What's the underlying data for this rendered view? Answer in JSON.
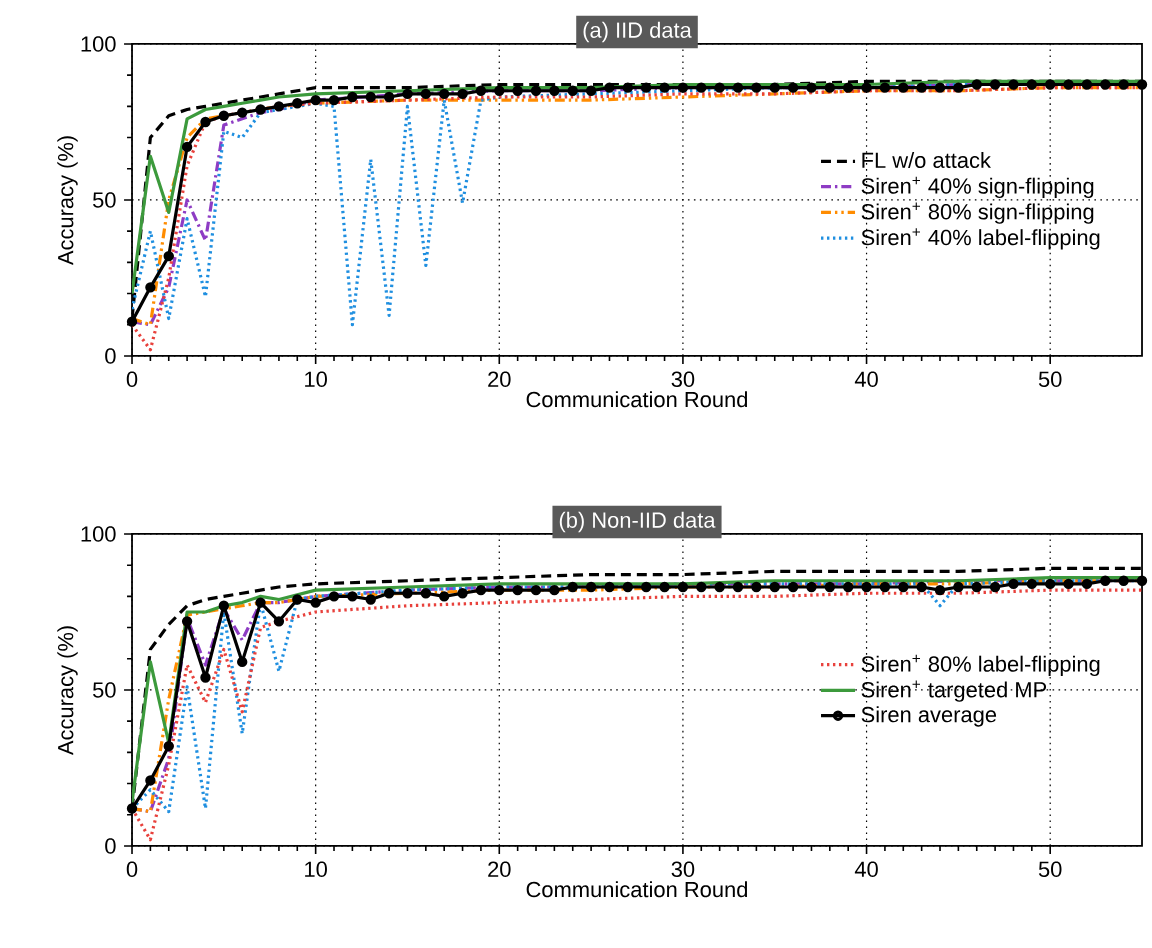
{
  "chart_data": [
    {
      "type": "line",
      "title": "(a) IID data",
      "xlabel": "Communication Round",
      "ylabel": "Accuracy (%)",
      "xlim": [
        0,
        55
      ],
      "ylim": [
        0,
        100
      ],
      "xticks": [
        0,
        10,
        20,
        30,
        40,
        50
      ],
      "yticks": [
        0,
        50,
        100
      ],
      "grid": true,
      "legend": "right",
      "series": [
        {
          "name": "FL w/o attack",
          "color": "#000000",
          "line_style": "dashed",
          "x": [
            0,
            1,
            2,
            3,
            4,
            5,
            6,
            7,
            8,
            10,
            15,
            20,
            25,
            30,
            35,
            40,
            45,
            50,
            55
          ],
          "values": [
            12,
            70,
            77,
            79,
            80,
            81,
            82,
            83,
            84,
            86,
            86,
            87,
            87,
            87,
            87,
            88,
            88,
            88,
            88
          ]
        },
        {
          "name": "Siren$^{+}$ 40% sign-flipping",
          "color": "#8e3cc4",
          "line_style": "dashdot",
          "x": [
            0,
            1,
            2,
            3,
            4,
            5,
            6,
            7,
            8,
            10,
            15,
            20,
            25,
            30,
            35,
            40,
            45,
            50,
            55
          ],
          "values": [
            11,
            10,
            22,
            50,
            37,
            74,
            76,
            78,
            79,
            82,
            84,
            85,
            85,
            86,
            86,
            86,
            87,
            87,
            87
          ]
        },
        {
          "name": "Siren$^{+}$ 80% sign-flipping",
          "color": "#ff8c00",
          "line_style": "dashdotdot",
          "x": [
            0,
            1,
            2,
            3,
            4,
            5,
            6,
            7,
            8,
            10,
            15,
            20,
            25,
            30,
            35,
            40,
            45,
            50,
            55
          ],
          "values": [
            12,
            10,
            50,
            70,
            76,
            77,
            78,
            79,
            80,
            81,
            82,
            82,
            82,
            83,
            84,
            85,
            85,
            86,
            86
          ]
        },
        {
          "name": "Siren$^{+}$ 40% label-flipping",
          "color": "#1f8fe0",
          "line_style": "dotted",
          "x": [
            0,
            1,
            2,
            3,
            4,
            5,
            6,
            7,
            8,
            9,
            10,
            11,
            12,
            13,
            14,
            15,
            16,
            17,
            18,
            19,
            20,
            25,
            30,
            35,
            40,
            45,
            50,
            55
          ],
          "values": [
            15,
            40,
            12,
            44,
            19,
            72,
            70,
            78,
            79,
            80,
            81,
            80,
            10,
            63,
            13,
            80,
            29,
            82,
            49,
            82,
            83,
            84,
            85,
            86,
            86,
            87,
            87,
            87
          ]
        },
        {
          "color": "#e8413c",
          "line_style": "dotted",
          "x": [
            0,
            1,
            2,
            3,
            4,
            5,
            6,
            7,
            8,
            10,
            15,
            20,
            25,
            30,
            35,
            40,
            45,
            50,
            55
          ],
          "values": [
            10,
            2,
            25,
            61,
            75,
            77,
            78,
            79,
            80,
            81,
            82,
            83,
            83,
            84,
            84,
            85,
            85,
            86,
            86
          ]
        },
        {
          "color": "#3c9a3c",
          "line_style": "solid",
          "x": [
            0,
            1,
            2,
            3,
            4,
            5,
            6,
            7,
            8,
            10,
            15,
            20,
            25,
            30,
            35,
            40,
            45,
            50,
            55
          ],
          "values": [
            20,
            64,
            46,
            76,
            79,
            80,
            81,
            82,
            83,
            84,
            85,
            86,
            86,
            87,
            87,
            87,
            88,
            88,
            88
          ]
        },
        {
          "color": "#000000",
          "line_style": "solid",
          "marker": "circle",
          "x": [
            0,
            1,
            2,
            3,
            4,
            5,
            6,
            7,
            8,
            9,
            10,
            11,
            12,
            13,
            14,
            15,
            16,
            17,
            18,
            19,
            20,
            21,
            22,
            23,
            24,
            25,
            26,
            27,
            28,
            29,
            30,
            31,
            32,
            33,
            34,
            35,
            36,
            37,
            38,
            39,
            40,
            41,
            42,
            43,
            44,
            45,
            46,
            47,
            48,
            49,
            50,
            51,
            52,
            53,
            54,
            55
          ],
          "values": [
            11,
            22,
            32,
            67,
            75,
            77,
            78,
            79,
            80,
            81,
            82,
            82,
            83,
            83,
            83,
            84,
            84,
            84,
            84,
            85,
            85,
            85,
            85,
            85,
            85,
            85,
            86,
            86,
            86,
            86,
            86,
            86,
            86,
            86,
            86,
            86,
            86,
            86,
            86,
            86,
            86,
            86,
            86,
            86,
            86,
            86,
            87,
            87,
            87,
            87,
            87,
            87,
            87,
            87,
            87,
            87
          ]
        }
      ]
    },
    {
      "type": "line",
      "title": "(b) Non-IID data",
      "xlabel": "Communication Round",
      "ylabel": "Accuracy (%)",
      "xlim": [
        0,
        55
      ],
      "ylim": [
        0,
        100
      ],
      "xticks": [
        0,
        10,
        20,
        30,
        40,
        50
      ],
      "yticks": [
        0,
        50,
        100
      ],
      "grid": true,
      "legend": "right",
      "series": [
        {
          "color": "#000000",
          "line_style": "dashed",
          "x": [
            0,
            1,
            2,
            3,
            4,
            5,
            6,
            7,
            8,
            10,
            15,
            20,
            25,
            30,
            35,
            40,
            45,
            50,
            55
          ],
          "values": [
            12,
            63,
            71,
            77,
            79,
            80,
            81,
            82,
            83,
            84,
            85,
            86,
            87,
            87,
            88,
            88,
            88,
            89,
            89
          ]
        },
        {
          "color": "#8e3cc4",
          "line_style": "dashdot",
          "x": [
            0,
            1,
            2,
            3,
            4,
            5,
            6,
            7,
            8,
            10,
            15,
            20,
            25,
            30,
            35,
            40,
            45,
            50,
            55
          ],
          "values": [
            12,
            11,
            28,
            73,
            58,
            76,
            66,
            78,
            78,
            80,
            82,
            83,
            83,
            84,
            84,
            84,
            85,
            85,
            85
          ]
        },
        {
          "color": "#ff8c00",
          "line_style": "dashdotdot",
          "x": [
            0,
            1,
            2,
            3,
            4,
            5,
            6,
            7,
            8,
            10,
            15,
            20,
            25,
            30,
            35,
            40,
            45,
            50,
            55
          ],
          "values": [
            12,
            11,
            47,
            74,
            75,
            76,
            77,
            78,
            78,
            80,
            81,
            82,
            82,
            83,
            83,
            84,
            84,
            85,
            85
          ]
        },
        {
          "color": "#1f8fe0",
          "line_style": "dotted",
          "x": [
            0,
            1,
            2,
            3,
            4,
            5,
            6,
            7,
            8,
            9,
            10,
            15,
            20,
            25,
            30,
            35,
            40,
            43,
            44,
            45,
            50,
            55
          ],
          "values": [
            12,
            18,
            11,
            51,
            12,
            75,
            36,
            78,
            56,
            79,
            80,
            82,
            83,
            83,
            84,
            84,
            84,
            84,
            77,
            84,
            85,
            85
          ]
        },
        {
          "name": "Siren$^{+}$ 80% label-flipping",
          "color": "#e8413c",
          "line_style": "dotted",
          "x": [
            0,
            1,
            2,
            3,
            4,
            5,
            6,
            7,
            8,
            10,
            15,
            20,
            25,
            30,
            35,
            40,
            45,
            50,
            55
          ],
          "values": [
            12,
            2,
            26,
            58,
            46,
            63,
            43,
            70,
            72,
            75,
            77,
            78,
            79,
            80,
            80,
            81,
            81,
            82,
            82
          ]
        },
        {
          "name": "Siren$^{+}$ targeted MP",
          "color": "#3c9a3c",
          "line_style": "solid",
          "x": [
            0,
            1,
            2,
            3,
            4,
            5,
            6,
            7,
            8,
            10,
            15,
            20,
            25,
            30,
            35,
            40,
            45,
            50,
            55
          ],
          "values": [
            14,
            59,
            33,
            75,
            75,
            77,
            78,
            80,
            79,
            82,
            83,
            84,
            84,
            84,
            85,
            85,
            85,
            86,
            86
          ]
        },
        {
          "name": "Siren average",
          "color": "#000000",
          "line_style": "solid",
          "marker": "circle",
          "x": [
            0,
            1,
            2,
            3,
            4,
            5,
            6,
            7,
            8,
            9,
            10,
            11,
            12,
            13,
            14,
            15,
            16,
            17,
            18,
            19,
            20,
            21,
            22,
            23,
            24,
            25,
            26,
            27,
            28,
            29,
            30,
            31,
            32,
            33,
            34,
            35,
            36,
            37,
            38,
            39,
            40,
            41,
            42,
            43,
            44,
            45,
            46,
            47,
            48,
            49,
            50,
            51,
            52,
            53,
            54,
            55
          ],
          "values": [
            12,
            21,
            32,
            72,
            54,
            77,
            59,
            78,
            72,
            79,
            78,
            80,
            80,
            79,
            81,
            81,
            81,
            80,
            81,
            82,
            82,
            82,
            82,
            82,
            83,
            83,
            83,
            83,
            83,
            83,
            83,
            83,
            83,
            83,
            83,
            83,
            83,
            83,
            83,
            83,
            83,
            83,
            83,
            83,
            82,
            83,
            83,
            83,
            84,
            84,
            84,
            84,
            84,
            85,
            85,
            85
          ]
        }
      ]
    }
  ]
}
